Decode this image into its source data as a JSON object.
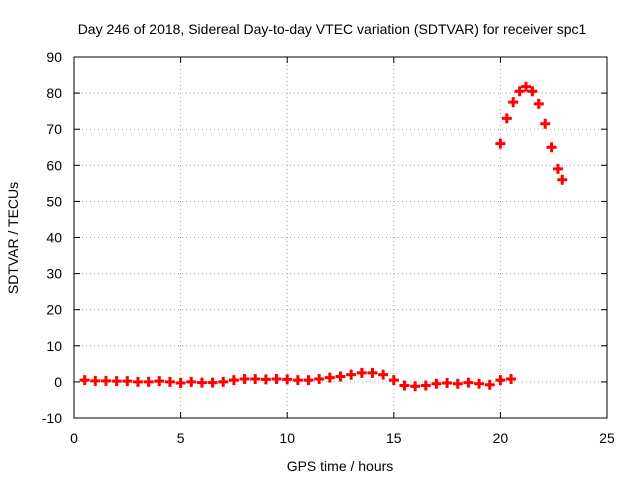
{
  "chart_data": {
    "type": "scatter",
    "title": "Day 246 of 2018, Sidereal Day-to-day VTEC variation (SDTVAR) for receiver spc1",
    "xlabel": "GPS time / hours",
    "ylabel": "SDTVAR / TECUs",
    "xlim": [
      0,
      25
    ],
    "ylim": [
      -10,
      90
    ],
    "xticks": [
      0,
      5,
      10,
      15,
      20,
      25
    ],
    "yticks": [
      -10,
      0,
      10,
      20,
      30,
      40,
      50,
      60,
      70,
      80,
      90
    ],
    "grid": true,
    "marker": "plus",
    "series": [
      {
        "name": "SDTVAR",
        "color": "#ff0000",
        "x": [
          0.5,
          1.0,
          1.5,
          2.0,
          2.5,
          3.0,
          3.5,
          4.0,
          4.5,
          5.0,
          5.5,
          6.0,
          6.5,
          7.0,
          7.5,
          8.0,
          8.5,
          9.0,
          9.5,
          10.0,
          10.5,
          11.0,
          11.5,
          12.0,
          12.5,
          13.0,
          13.5,
          14.0,
          14.5,
          15.0,
          15.5,
          16.0,
          16.5,
          17.0,
          17.5,
          18.0,
          18.5,
          19.0,
          19.5,
          20.0,
          20.5,
          20.0,
          20.3,
          20.6,
          20.9,
          21.2,
          21.5,
          21.8,
          22.1,
          22.4,
          22.7,
          22.9
        ],
        "y": [
          0.5,
          0.3,
          0.3,
          0.2,
          0.2,
          0.0,
          0.0,
          0.2,
          0.0,
          -0.3,
          0.0,
          -0.2,
          -0.2,
          0.0,
          0.5,
          0.8,
          0.8,
          0.7,
          0.8,
          0.7,
          0.5,
          0.5,
          0.8,
          1.2,
          1.5,
          2.0,
          2.5,
          2.5,
          2.0,
          0.5,
          -1.0,
          -1.2,
          -1.0,
          -0.5,
          -0.3,
          -0.5,
          -0.2,
          -0.5,
          -0.8,
          0.5,
          0.8,
          66,
          73,
          77.5,
          80.5,
          81.8,
          80.5,
          77,
          71.5,
          65,
          59,
          56
        ]
      }
    ]
  }
}
